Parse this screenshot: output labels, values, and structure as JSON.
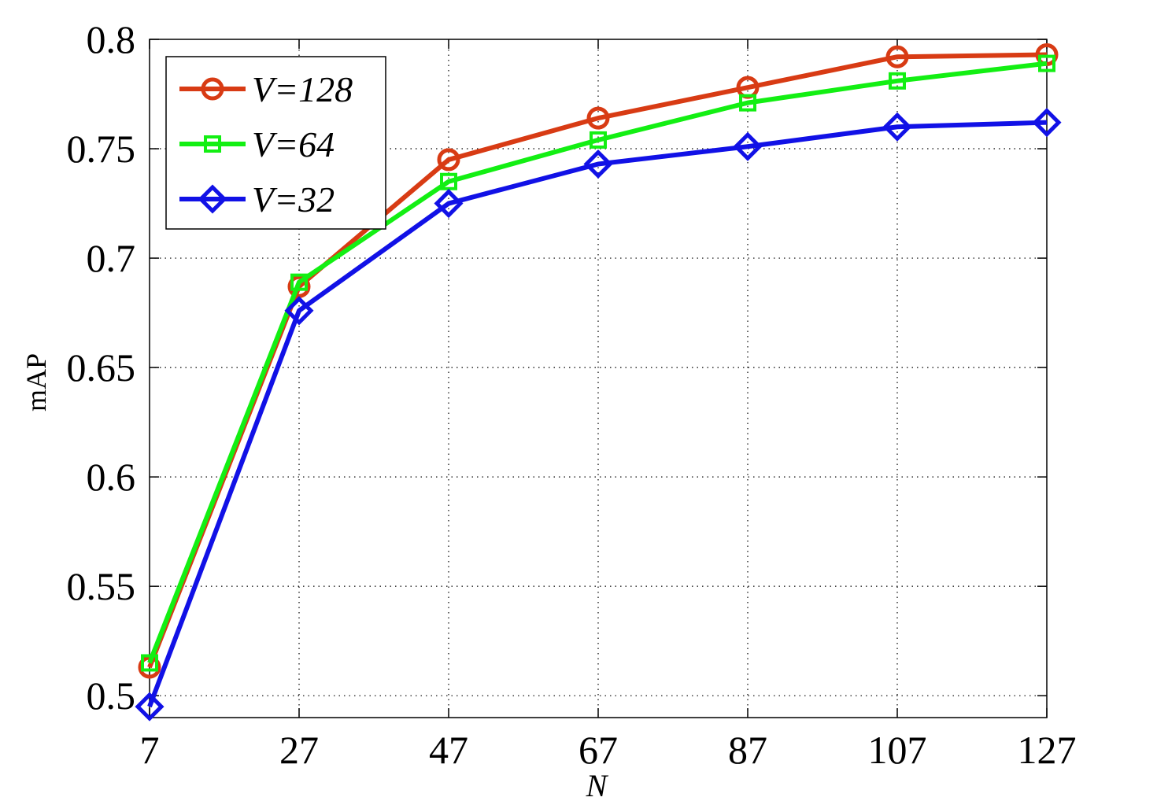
{
  "chart_data": {
    "type": "line",
    "xlabel": "N",
    "ylabel": "mAP",
    "x": [
      7,
      27,
      47,
      67,
      87,
      107,
      127
    ],
    "xlim": [
      7,
      127
    ],
    "ylim": [
      0.49,
      0.8
    ],
    "xticks": [
      "7",
      "27",
      "47",
      "67",
      "87",
      "107",
      "127"
    ],
    "yticks": [
      {
        "value": 0.5,
        "label": "0.5"
      },
      {
        "value": 0.55,
        "label": "0.55"
      },
      {
        "value": 0.6,
        "label": "0.6"
      },
      {
        "value": 0.65,
        "label": "0.65"
      },
      {
        "value": 0.7,
        "label": "0.7"
      },
      {
        "value": 0.75,
        "label": "0.75"
      },
      {
        "value": 0.8,
        "label": "0.8"
      }
    ],
    "grid": true,
    "legend_position": "top-left",
    "series": [
      {
        "name": "V=128",
        "color": "#d83b14",
        "marker": "circle",
        "values": [
          0.513,
          0.687,
          0.745,
          0.764,
          0.778,
          0.792,
          0.793
        ]
      },
      {
        "name": "V=64",
        "color": "#13ef13",
        "marker": "square",
        "values": [
          0.515,
          0.689,
          0.735,
          0.754,
          0.771,
          0.781,
          0.789
        ]
      },
      {
        "name": "V=32",
        "color": "#1111e6",
        "marker": "diamond",
        "values": [
          0.495,
          0.676,
          0.725,
          0.743,
          0.751,
          0.76,
          0.762
        ]
      }
    ]
  }
}
